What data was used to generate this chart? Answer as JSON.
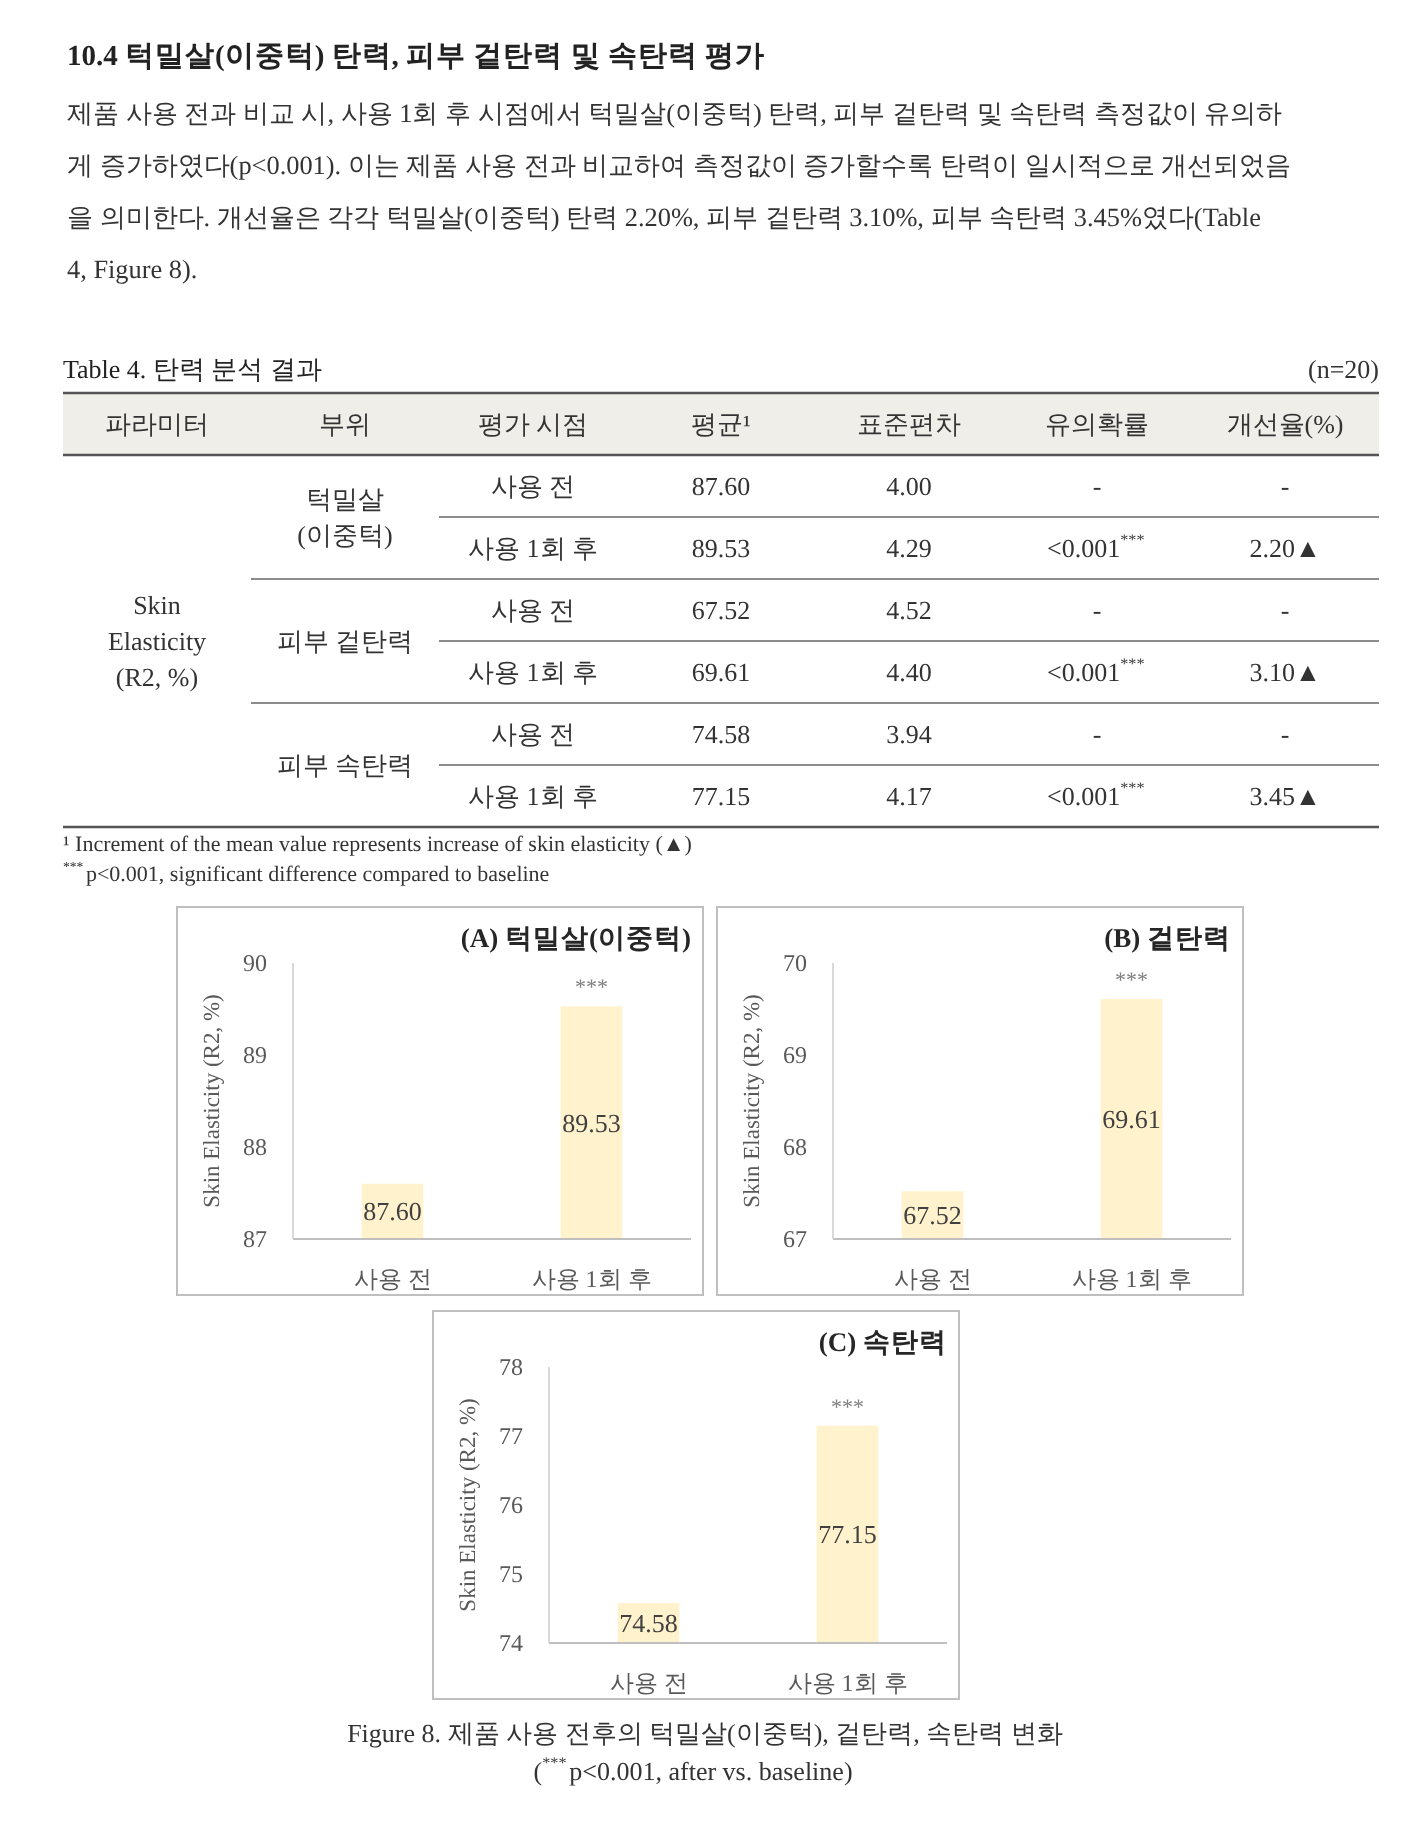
{
  "chart_data": [
    {
      "type": "other",
      "title": "10.4 턱밀살(이중턱) 탄력, 피부 겉탄력 및 속탄력 평가",
      "annotations": [
        "제품 사용 전과 비교 시, 사용 1회 후 시점에서 턱밀살(이중턱) 탄력, 피부 겉탄력 및 속탄력 측정값이 유의하",
        "게 증가하였다(p<0.001). 이는 제품 사용 전과 비교하여 측정값이 증가할수록 탄력이 일시적으로 개선되었음",
        "을 의미한다. 개선율은 각각 턱밀살(이중턱) 탄력 2.20%, 피부 겉탄력 3.10%, 피부 속탄력 3.45%였다(Table",
        "4, Figure 8)."
      ]
    },
    {
      "type": "other",
      "title": "Table 4. 탄력 분석 결과",
      "subtitle": "(n=20)",
      "categories": [
        "파라미터",
        "부위",
        "평가 시점",
        "평균¹",
        "표준편차",
        "유의확률",
        "개선율(%)"
      ],
      "cell_labels": [
        [
          "Skin Elasticity (R2, %)",
          "턱밀살 (이중턱)",
          "사용 전",
          "87.60",
          "4.00",
          "-",
          "-"
        ],
        [
          null,
          null,
          "사용 1회 후",
          "89.53",
          "4.29",
          "<0.001$^{***}$",
          "2.20▲"
        ],
        [
          null,
          "피부 겉탄력",
          "사용 전",
          "67.52",
          "4.52",
          "-",
          "-"
        ],
        [
          null,
          null,
          "사용 1회 후",
          "69.61",
          "4.40",
          "<0.001$^{***}$",
          "3.10▲"
        ],
        [
          null,
          "피부 속탄력",
          "사용 전",
          "74.58",
          "3.94",
          "-",
          "-"
        ],
        [
          null,
          null,
          "사용 1회 후",
          "77.15",
          "4.17",
          "<0.001$^{***}$",
          "3.45▲"
        ]
      ],
      "annotations": [
        "¹ Increment of the mean value represents increase of skin elasticity (▲)",
        "$^{***}$p<0.001, significant difference compared to baseline"
      ]
    },
    {
      "type": "bar",
      "title": "(A) 턱밀살(이중턱)",
      "ylabel": "Skin Elasticity (R2, %)",
      "categories": [
        "사용 전",
        "사용 1회 후"
      ],
      "values": [
        87.6,
        89.53
      ],
      "value_labels": [
        "87.60",
        "89.53"
      ],
      "color": "#fff2cc",
      "ylim": [
        87,
        90
      ],
      "yticks": [
        87,
        88,
        89,
        90
      ],
      "annotations": [
        {
          "text": "***",
          "x": "사용 1회 후",
          "y": 89.53
        }
      ]
    },
    {
      "type": "bar",
      "title": "(B) 겉탄력",
      "ylabel": "Skin Elasticity (R2, %)",
      "categories": [
        "사용 전",
        "사용 1회 후"
      ],
      "values": [
        67.52,
        69.61
      ],
      "value_labels": [
        "67.52",
        "69.61"
      ],
      "color": "#fff2cc",
      "ylim": [
        67,
        70
      ],
      "yticks": [
        67,
        68,
        69,
        70
      ],
      "annotations": [
        {
          "text": "***",
          "x": "사용 1회 후",
          "y": 69.61
        }
      ]
    },
    {
      "type": "bar",
      "title": "(C) 속탄력",
      "ylabel": "Skin Elasticity (R2, %)",
      "categories": [
        "사용 전",
        "사용 1회 후"
      ],
      "values": [
        74.58,
        77.15
      ],
      "value_labels": [
        "74.58",
        "77.15"
      ],
      "color": "#fff2cc",
      "ylim": [
        74,
        78
      ],
      "yticks": [
        74,
        75,
        76,
        77,
        78
      ],
      "annotations": [
        {
          "text": "***",
          "x": "사용 1회 후",
          "y": 77.15
        }
      ]
    },
    {
      "type": "other",
      "annotations": [
        "Figure 8. 제품 사용 전후의 턱밀살(이중턱), 겉탄력, 속탄력 변화",
        "($^{***}$p<0.001, after vs. baseline)"
      ]
    }
  ]
}
